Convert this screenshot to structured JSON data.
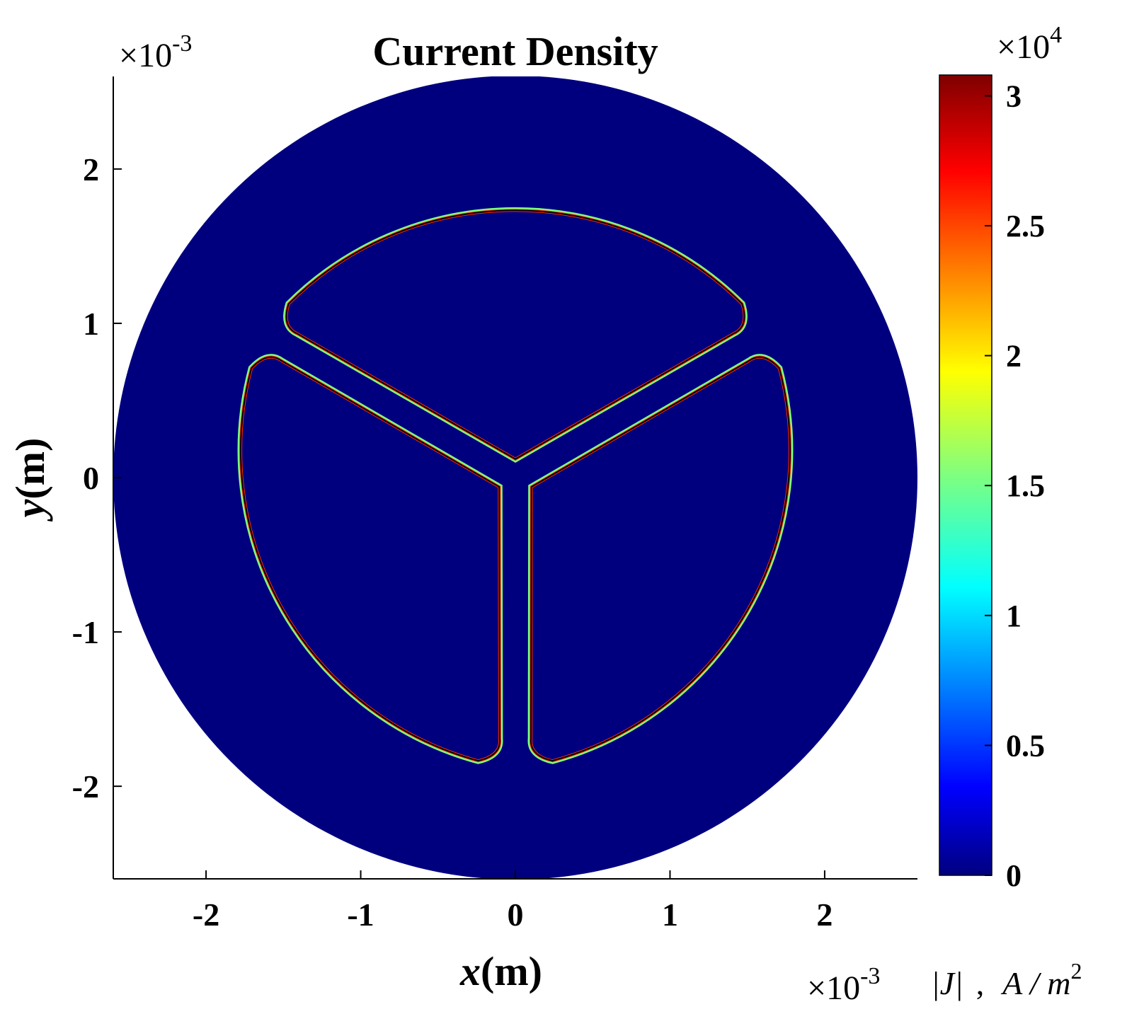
{
  "chart_data": {
    "type": "heatmap",
    "title": "Current Density",
    "xlabel_var": "x",
    "xlabel_unit": "(m)",
    "ylabel_var": "y",
    "ylabel_unit": "(m)",
    "x_exponent_label": "×10",
    "x_exponent_power": "-3",
    "y_exponent_label": "×10",
    "y_exponent_power": "-3",
    "xlim": [
      -2.6,
      2.6
    ],
    "ylim": [
      -2.6,
      2.6
    ],
    "x_ticks": [
      -2,
      -1,
      0,
      1,
      2
    ],
    "x_tick_labels": [
      "-2",
      "-1",
      "0",
      "1",
      "2"
    ],
    "y_ticks": [
      -2,
      -1,
      0,
      1,
      2
    ],
    "y_tick_labels": [
      "-2",
      "-1",
      "0",
      "1",
      "2"
    ],
    "colorbar": {
      "label_quantity": "|J|",
      "label_unit": "A / m",
      "label_unit_power": "2",
      "exponent_label": "×10",
      "exponent_power": "4",
      "range": [
        0,
        3.08
      ],
      "ticks": [
        0,
        0.5,
        1,
        1.5,
        2,
        2.5,
        3
      ],
      "tick_labels": [
        "0",
        "0.5",
        "1",
        "1.5",
        "2",
        "2.5",
        "3"
      ],
      "colormap": "jet"
    },
    "domain": {
      "outer_radius": 2.6,
      "background_value": 0,
      "conductor_count": 3,
      "conductor_outer_radius": 2.08,
      "conductor_centers_deg": [
        90,
        210,
        330
      ],
      "edge_peak_value": 3.0
    },
    "colors": {
      "background_field": "#00007f",
      "edge_hot": "#ff2a00",
      "edge_mid": "#7fff7f",
      "boundary": "#000000"
    }
  }
}
